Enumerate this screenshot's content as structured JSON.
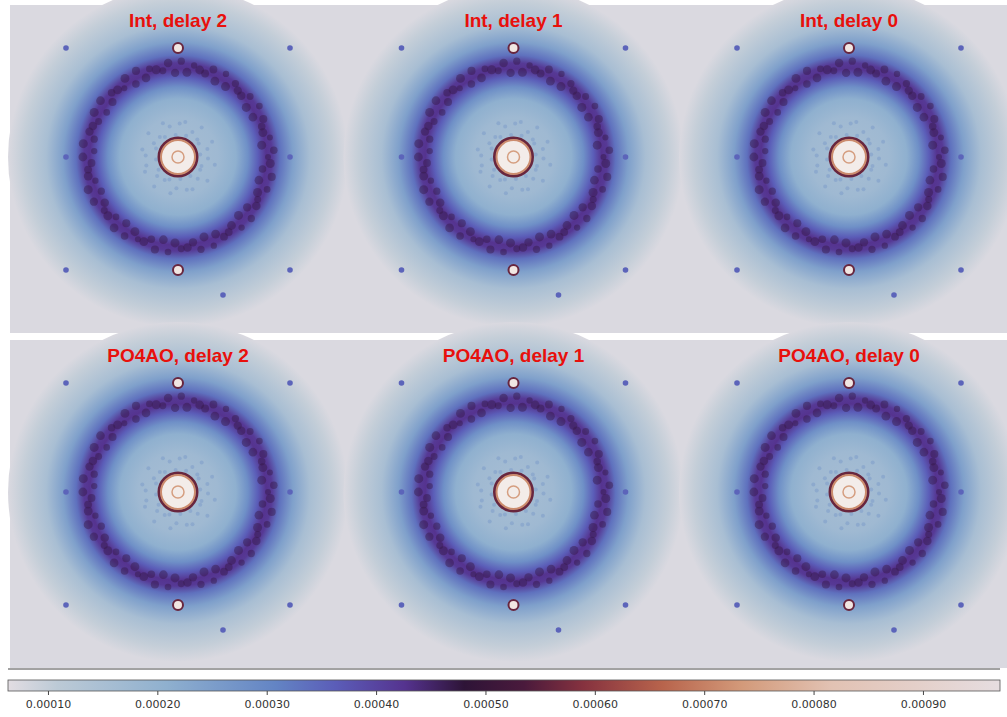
{
  "chart_data": {
    "type": "image_grid",
    "panels": [
      {
        "title": "Int, delay 2"
      },
      {
        "title": "Int, delay 1"
      },
      {
        "title": "Int, delay 0"
      },
      {
        "title": "PO4AO, delay 2"
      },
      {
        "title": "PO4AO, delay 1"
      },
      {
        "title": "PO4AO, delay 0"
      }
    ],
    "colorbar_range": [
      6.3e-05,
      0.00097
    ],
    "colorbar_ticks": [
      {
        "value": 0.0001,
        "label": "0.00010"
      },
      {
        "value": 0.0002,
        "label": "0.00020"
      },
      {
        "value": 0.0003,
        "label": "0.00030"
      },
      {
        "value": 0.0004,
        "label": "0.00040"
      },
      {
        "value": 0.0005,
        "label": "0.00050"
      },
      {
        "value": 0.0006,
        "label": "0.00060"
      },
      {
        "value": 0.0007,
        "label": "0.00070"
      },
      {
        "value": 0.0008,
        "label": "0.00080"
      },
      {
        "value": 0.0009,
        "label": "0.00090"
      }
    ]
  }
}
